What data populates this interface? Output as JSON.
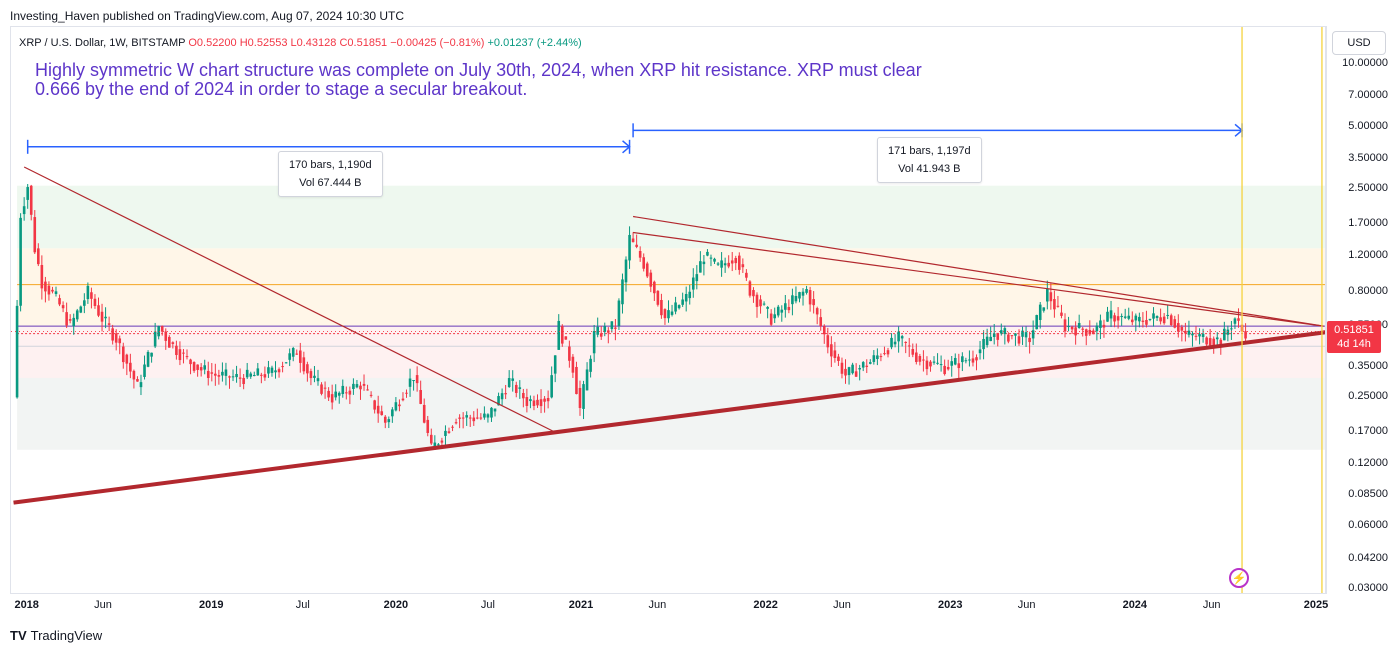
{
  "publisher": "Investing_Haven published on TradingView.com, Aug 07, 2024 10:30 UTC",
  "symbol": {
    "name": "XRP / U.S. Dollar, 1W, BITSTAMP",
    "open": "O0.52200",
    "high": "H0.52553",
    "low": "L0.43128",
    "close": "C0.51851",
    "change": "−0.00425 (−0.81%)",
    "change2": "+0.01237 (+2.44%)"
  },
  "annotation": "Highly symmetric W chart structure was complete on July 30th, 2024, when XRP hit resistance. XRP must clear 0.666 by the end of 2024 in order to stage a secular breakout.",
  "measures": [
    {
      "bars": "170 bars, 1,190d",
      "vol": "Vol 67.444 B"
    },
    {
      "bars": "171 bars, 1,197d",
      "vol": "Vol 41.943 B"
    }
  ],
  "currency": "USD",
  "price_tag": {
    "value": "0.51851",
    "countdown": "4d 14h"
  },
  "footer": {
    "logo": "TV",
    "brand": "TradingView"
  },
  "alert_icon": "lightning-icon",
  "colors": {
    "up": "#089981",
    "down": "#f23645",
    "annotation": "#5d35c9",
    "trendline": "#b2282e",
    "measure": "#2962ff",
    "vertical_line": "#f5d33f"
  },
  "chart_data": {
    "type": "candlestick",
    "scale": "log",
    "interval": "1W",
    "ylim": [
      0.03,
      15.0
    ],
    "y_ticks": [
      "10.00000",
      "7.00000",
      "5.00000",
      "3.50000",
      "2.50000",
      "1.70000",
      "1.20000",
      "0.80000",
      "0.55000",
      "0.35000",
      "0.25000",
      "0.17000",
      "0.12000",
      "0.08500",
      "0.06000",
      "0.04200",
      "0.03000"
    ],
    "x_ticks": [
      {
        "date": "2018-01-01",
        "label": "2018",
        "year": true
      },
      {
        "date": "2018-06-01",
        "label": "Jun",
        "year": false
      },
      {
        "date": "2019-01-01",
        "label": "2019",
        "year": true
      },
      {
        "date": "2019-07-01",
        "label": "Jul",
        "year": false
      },
      {
        "date": "2020-01-01",
        "label": "2020",
        "year": true
      },
      {
        "date": "2020-07-01",
        "label": "Jul",
        "year": false
      },
      {
        "date": "2021-01-01",
        "label": "2021",
        "year": true
      },
      {
        "date": "2021-06-01",
        "label": "Jun",
        "year": false
      },
      {
        "date": "2022-01-01",
        "label": "2022",
        "year": true
      },
      {
        "date": "2022-06-01",
        "label": "Jun",
        "year": false
      },
      {
        "date": "2023-01-01",
        "label": "2023",
        "year": true
      },
      {
        "date": "2023-06-01",
        "label": "Jun",
        "year": false
      },
      {
        "date": "2024-01-01",
        "label": "2024",
        "year": true
      },
      {
        "date": "2024-06-01",
        "label": "Jun",
        "year": false
      },
      {
        "date": "2025-01-01",
        "label": "2025",
        "year": true
      }
    ],
    "price_path": [
      [
        "2017-12-11",
        0.25
      ],
      [
        "2017-12-25",
        1.9
      ],
      [
        "2018-01-08",
        2.6
      ],
      [
        "2018-01-22",
        1.3
      ],
      [
        "2018-02-05",
        0.9
      ],
      [
        "2018-03-05",
        0.75
      ],
      [
        "2018-04-02",
        0.55
      ],
      [
        "2018-05-07",
        0.8
      ],
      [
        "2018-06-04",
        0.6
      ],
      [
        "2018-07-02",
        0.48
      ],
      [
        "2018-08-13",
        0.28
      ],
      [
        "2018-09-24",
        0.55
      ],
      [
        "2018-10-15",
        0.46
      ],
      [
        "2018-11-19",
        0.38
      ],
      [
        "2018-12-17",
        0.34
      ],
      [
        "2019-01-14",
        0.32
      ],
      [
        "2019-03-04",
        0.31
      ],
      [
        "2019-05-06",
        0.33
      ],
      [
        "2019-06-24",
        0.42
      ],
      [
        "2019-07-22",
        0.31
      ],
      [
        "2019-09-02",
        0.25
      ],
      [
        "2019-10-28",
        0.29
      ],
      [
        "2019-12-16",
        0.19
      ],
      [
        "2020-02-10",
        0.32
      ],
      [
        "2020-03-16",
        0.14
      ],
      [
        "2020-05-04",
        0.2
      ],
      [
        "2020-07-06",
        0.2
      ],
      [
        "2020-08-17",
        0.3
      ],
      [
        "2020-09-21",
        0.24
      ],
      [
        "2020-11-02",
        0.25
      ],
      [
        "2020-11-23",
        0.55
      ],
      [
        "2020-12-21",
        0.35
      ],
      [
        "2021-01-04",
        0.22
      ],
      [
        "2021-02-01",
        0.5
      ],
      [
        "2021-03-15",
        0.55
      ],
      [
        "2021-04-12",
        1.45
      ],
      [
        "2021-05-10",
        1.1
      ],
      [
        "2021-06-21",
        0.6
      ],
      [
        "2021-08-02",
        0.75
      ],
      [
        "2021-09-06",
        1.2
      ],
      [
        "2021-10-04",
        1.05
      ],
      [
        "2021-11-08",
        1.2
      ],
      [
        "2021-12-06",
        0.82
      ],
      [
        "2022-01-17",
        0.6
      ],
      [
        "2022-03-28",
        0.82
      ],
      [
        "2022-05-09",
        0.45
      ],
      [
        "2022-06-13",
        0.32
      ],
      [
        "2022-08-01",
        0.37
      ],
      [
        "2022-09-26",
        0.48
      ],
      [
        "2022-11-07",
        0.38
      ],
      [
        "2022-12-26",
        0.35
      ],
      [
        "2023-02-20",
        0.39
      ],
      [
        "2023-04-03",
        0.51
      ],
      [
        "2023-06-12",
        0.48
      ],
      [
        "2023-07-17",
        0.8
      ],
      [
        "2023-08-21",
        0.55
      ],
      [
        "2023-10-16",
        0.52
      ],
      [
        "2023-11-20",
        0.62
      ],
      [
        "2024-01-08",
        0.58
      ],
      [
        "2024-03-11",
        0.62
      ],
      [
        "2024-04-15",
        0.5
      ],
      [
        "2024-06-24",
        0.47
      ],
      [
        "2024-07-22",
        0.6
      ],
      [
        "2024-08-05",
        0.52
      ]
    ],
    "trendlines": [
      {
        "start": [
          "2017-12-25",
          3.2
        ],
        "end": [
          "2020-11-09",
          0.17
        ]
      },
      {
        "start": [
          "2021-04-12",
          1.85
        ],
        "end": [
          "2025-01-06",
          0.55
        ]
      },
      {
        "start": [
          "2021-04-12",
          1.55
        ],
        "end": [
          "2025-01-06",
          0.55
        ]
      },
      {
        "start": [
          "2017-12-04",
          0.078
        ],
        "end": [
          "2025-01-13",
          0.515
        ],
        "thick": true
      }
    ],
    "horizontal_levels": [
      0.87,
      0.55,
      0.506,
      0.44
    ],
    "zones": [
      {
        "from": 1.3,
        "to": 2.6
      },
      {
        "from": 0.55,
        "to": 1.3
      },
      {
        "from": 0.31,
        "to": 0.55
      },
      {
        "from": 0.14,
        "to": 0.31
      }
    ],
    "measure_ranges": [
      {
        "from": "2018-01-01",
        "to": "2021-04-05",
        "price": 4.0
      },
      {
        "from": "2021-04-12",
        "to": "2024-07-29",
        "price": 4.8
      }
    ],
    "vertical_lines": [
      "2024-07-29",
      "2025-01-03"
    ]
  }
}
